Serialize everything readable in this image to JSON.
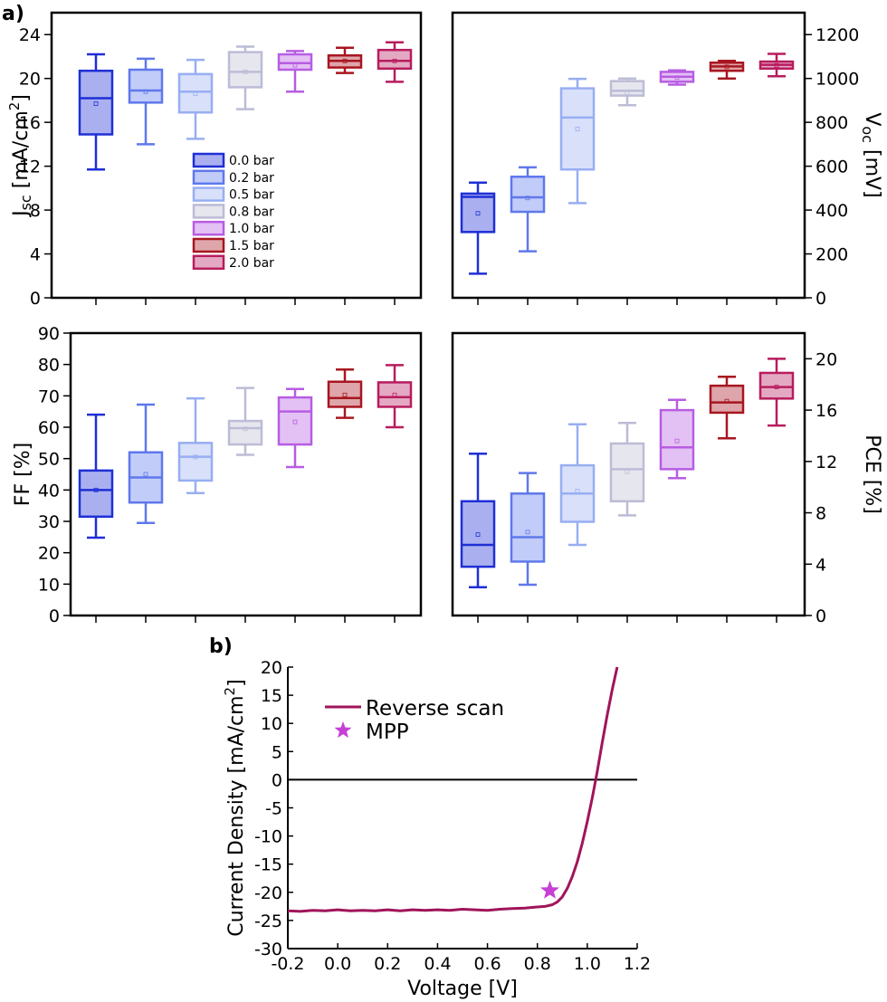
{
  "figure": {
    "panel_a_label": "a)",
    "panel_b_label": "b)"
  },
  "legend": {
    "items": [
      {
        "label": "0.0 bar",
        "color": "#1f2fd6"
      },
      {
        "label": "0.2 bar",
        "color": "#5f78ec"
      },
      {
        "label": "0.5 bar",
        "color": "#98aef2"
      },
      {
        "label": "0.8 bar",
        "color": "#bcbcd6"
      },
      {
        "label": "1.0 bar",
        "color": "#b75de3"
      },
      {
        "label": "1.5 bar",
        "color": "#a81620"
      },
      {
        "label": "2.0 bar",
        "color": "#b81c5e"
      }
    ]
  },
  "chart_data": [
    {
      "id": "jsc",
      "type": "box",
      "ylabel": "Jsc [mA/cm²]",
      "ylabel_main": "J",
      "ylabel_sub": "sc",
      "ylabel_rest": " [mA/cm",
      "ylabel_sup": "2",
      "ylabel_end": "]",
      "ylim": [
        0,
        26
      ],
      "yticks": [
        0,
        4,
        8,
        12,
        16,
        20,
        24
      ],
      "ytick_labels": [
        "0",
        "4",
        "8",
        "12",
        "16",
        "20",
        "24"
      ],
      "y_axis_side": "left",
      "categories": [
        "0.0 bar",
        "0.2 bar",
        "0.5 bar",
        "0.8 bar",
        "1.0 bar",
        "1.5 bar",
        "2.0 bar"
      ],
      "boxes": [
        {
          "min": 11.7,
          "q1": 14.9,
          "median": 18.2,
          "q3": 20.7,
          "max": 22.2,
          "mean": 17.7
        },
        {
          "min": 14.0,
          "q1": 17.8,
          "median": 18.9,
          "q3": 20.8,
          "max": 21.8,
          "mean": 18.8
        },
        {
          "min": 14.5,
          "q1": 16.9,
          "median": 18.8,
          "q3": 20.4,
          "max": 21.7,
          "mean": 18.6
        },
        {
          "min": 17.2,
          "q1": 19.2,
          "median": 20.6,
          "q3": 22.4,
          "max": 22.9,
          "mean": 20.6
        },
        {
          "min": 18.8,
          "q1": 20.8,
          "median": 21.4,
          "q3": 22.2,
          "max": 22.5,
          "mean": 21.2
        },
        {
          "min": 20.5,
          "q1": 21.0,
          "median": 21.6,
          "q3": 22.1,
          "max": 22.8,
          "mean": 21.6
        },
        {
          "min": 19.7,
          "q1": 20.9,
          "median": 21.6,
          "q3": 22.6,
          "max": 23.3,
          "mean": 21.6
        }
      ]
    },
    {
      "id": "voc",
      "type": "box",
      "ylabel": "Voc [mV]",
      "ylabel_main": "V",
      "ylabel_sub": "oc",
      "ylabel_rest": " [mV]",
      "ylim": [
        0,
        1300
      ],
      "yticks": [
        0,
        200,
        400,
        600,
        800,
        1000,
        1200
      ],
      "ytick_labels": [
        "0",
        "200",
        "400",
        "600",
        "800",
        "1000",
        "1200"
      ],
      "y_axis_side": "right",
      "categories": [
        "0.0 bar",
        "0.2 bar",
        "0.5 bar",
        "0.8 bar",
        "1.0 bar",
        "1.5 bar",
        "2.0 bar"
      ],
      "boxes": [
        {
          "min": 110,
          "q1": 300,
          "median": 460,
          "q3": 475,
          "max": 525,
          "mean": 385
        },
        {
          "min": 212,
          "q1": 392,
          "median": 458,
          "q3": 552,
          "max": 595,
          "mean": 455
        },
        {
          "min": 432,
          "q1": 585,
          "median": 822,
          "q3": 955,
          "max": 998,
          "mean": 770
        },
        {
          "min": 878,
          "q1": 922,
          "median": 944,
          "q3": 988,
          "max": 1000,
          "mean": 934
        },
        {
          "min": 972,
          "q1": 985,
          "median": 1008,
          "q3": 1030,
          "max": 1037,
          "mean": 1004
        },
        {
          "min": 1000,
          "q1": 1035,
          "median": 1055,
          "q3": 1072,
          "max": 1080,
          "mean": 1053
        },
        {
          "min": 1010,
          "q1": 1045,
          "median": 1062,
          "q3": 1077,
          "max": 1112,
          "mean": 1060
        }
      ]
    },
    {
      "id": "ff",
      "type": "box",
      "ylabel": "FF [%]",
      "ylim": [
        0,
        90
      ],
      "yticks": [
        0,
        10,
        20,
        30,
        40,
        50,
        60,
        70,
        80,
        90
      ],
      "ytick_labels": [
        "0",
        "10",
        "20",
        "30",
        "40",
        "50",
        "60",
        "70",
        "80",
        "90"
      ],
      "y_axis_side": "left",
      "categories": [
        "0.0 bar",
        "0.2 bar",
        "0.5 bar",
        "0.8 bar",
        "1.0 bar",
        "1.5 bar",
        "2.0 bar"
      ],
      "boxes": [
        {
          "min": 24.8,
          "q1": 31.5,
          "median": 40.0,
          "q3": 46.2,
          "max": 64.0,
          "mean": 40.0
        },
        {
          "min": 29.5,
          "q1": 36.0,
          "median": 44.0,
          "q3": 52.0,
          "max": 67.2,
          "mean": 45.0
        },
        {
          "min": 39.0,
          "q1": 43.0,
          "median": 50.6,
          "q3": 55.0,
          "max": 69.2,
          "mean": 50.5
        },
        {
          "min": 51.2,
          "q1": 54.5,
          "median": 59.7,
          "q3": 62.0,
          "max": 72.5,
          "mean": 59.5
        },
        {
          "min": 47.3,
          "q1": 54.5,
          "median": 65.0,
          "q3": 69.5,
          "max": 72.2,
          "mean": 61.7
        },
        {
          "min": 63.0,
          "q1": 66.5,
          "median": 69.3,
          "q3": 74.5,
          "max": 78.4,
          "mean": 70.3
        },
        {
          "min": 60.0,
          "q1": 66.5,
          "median": 69.6,
          "q3": 74.3,
          "max": 79.8,
          "mean": 70.3
        }
      ]
    },
    {
      "id": "pce",
      "type": "box",
      "ylabel": "PCE [%]",
      "ylim": [
        0,
        22
      ],
      "yticks": [
        0,
        4,
        8,
        12,
        16,
        20
      ],
      "ytick_labels": [
        "0",
        "4",
        "8",
        "12",
        "16",
        "20"
      ],
      "y_axis_side": "right",
      "categories": [
        "0.0 bar",
        "0.2 bar",
        "0.5 bar",
        "0.8 bar",
        "1.0 bar",
        "1.5 bar",
        "2.0 bar"
      ],
      "boxes": [
        {
          "min": 2.2,
          "q1": 3.8,
          "median": 5.5,
          "q3": 8.9,
          "max": 12.6,
          "mean": 6.3
        },
        {
          "min": 2.4,
          "q1": 4.2,
          "median": 6.1,
          "q3": 9.5,
          "max": 11.1,
          "mean": 6.5
        },
        {
          "min": 5.5,
          "q1": 7.3,
          "median": 9.5,
          "q3": 11.7,
          "max": 14.9,
          "mean": 9.7
        },
        {
          "min": 7.8,
          "q1": 8.9,
          "median": 11.4,
          "q3": 13.4,
          "max": 15.0,
          "mean": 11.2
        },
        {
          "min": 10.7,
          "q1": 11.4,
          "median": 13.1,
          "q3": 16.0,
          "max": 16.8,
          "mean": 13.6
        },
        {
          "min": 13.8,
          "q1": 15.8,
          "median": 16.6,
          "q3": 17.9,
          "max": 18.6,
          "mean": 16.7
        },
        {
          "min": 14.8,
          "q1": 16.9,
          "median": 17.8,
          "q3": 18.9,
          "max": 20.0,
          "mean": 17.8
        }
      ]
    },
    {
      "id": "iv",
      "type": "line",
      "xlabel": "Voltage [V]",
      "ylabel": "Current Density [mA/cm²]",
      "ylabel_main": "Current Density [mA/cm",
      "ylabel_sup": "2",
      "ylabel_end": "]",
      "xlim": [
        -0.2,
        1.2
      ],
      "ylim": [
        -30,
        20
      ],
      "xticks": [
        -0.2,
        0.0,
        0.2,
        0.4,
        0.6,
        0.8,
        1.0,
        1.2
      ],
      "xtick_labels": [
        "-0.2",
        "0.0",
        "0.2",
        "0.4",
        "0.6",
        "0.8",
        "1.0",
        "1.2"
      ],
      "yticks": [
        -30,
        -25,
        -20,
        -15,
        -10,
        -5,
        0,
        5,
        10,
        15,
        20
      ],
      "ytick_labels": [
        "-30",
        "-25",
        "-20",
        "-15",
        "-10",
        "-5",
        "0",
        "5",
        "10",
        "15",
        "20"
      ],
      "series": [
        {
          "name": "Reverse scan",
          "color": "#a0155a",
          "x": [
            -0.2,
            -0.15,
            -0.1,
            -0.05,
            0.0,
            0.05,
            0.1,
            0.15,
            0.2,
            0.25,
            0.3,
            0.35,
            0.4,
            0.45,
            0.5,
            0.55,
            0.6,
            0.65,
            0.7,
            0.75,
            0.8,
            0.83,
            0.86,
            0.88,
            0.9,
            0.92,
            0.94,
            0.96,
            0.98,
            1.0,
            1.02,
            1.04,
            1.06,
            1.08,
            1.1,
            1.12
          ],
          "y": [
            -23.3,
            -23.4,
            -23.2,
            -23.3,
            -23.1,
            -23.3,
            -23.2,
            -23.3,
            -23.1,
            -23.3,
            -23.1,
            -23.2,
            -23.1,
            -23.2,
            -23.0,
            -23.1,
            -23.2,
            -23.0,
            -22.9,
            -22.8,
            -22.6,
            -22.5,
            -22.2,
            -21.7,
            -20.8,
            -19.3,
            -17.2,
            -14.6,
            -11.3,
            -7.4,
            -3.2,
            1.5,
            6.6,
            11.5,
            16.0,
            20.0
          ]
        }
      ],
      "mpp": {
        "name": "MPP",
        "x": 0.85,
        "y": -19.7,
        "color": "#c640d6"
      },
      "zero_line_y": 0
    }
  ]
}
